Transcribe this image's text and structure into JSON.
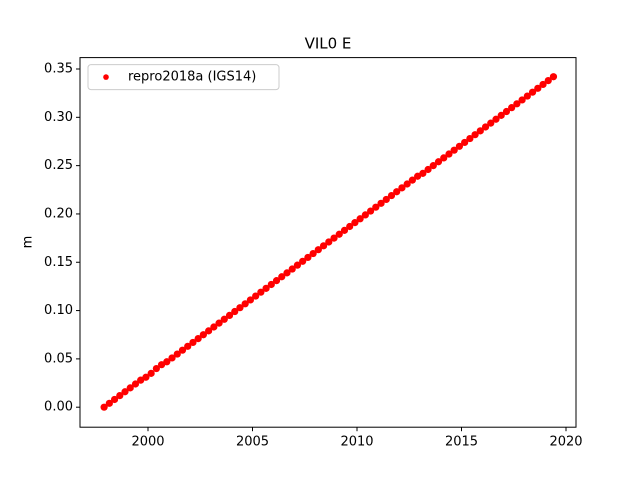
{
  "chart_data": {
    "type": "scatter",
    "title": "VIL0 E",
    "y_label": "m",
    "legend_loc": "upper left",
    "xlim": [
      1996.746,
      2020.478
    ],
    "ylim": [
      -0.0207,
      0.3618
    ],
    "xticks": [
      2000,
      2005,
      2010,
      2015,
      2020
    ],
    "yticks": [
      {
        "value": 0,
        "label": "0.00"
      },
      0.05,
      {
        "value": 0.1,
        "label": "0.10"
      },
      0.15,
      {
        "value": 0.2,
        "label": "0.20"
      },
      0.25,
      {
        "value": 0.3,
        "label": "0.30"
      },
      0.35
    ],
    "series": [
      {
        "name": "repro2018a (IGS14)",
        "color": "#ff0000",
        "x": [
          1997.9,
          1998.15,
          1998.4,
          1998.65,
          1998.9,
          1999.15,
          1999.4,
          1999.65,
          1999.9,
          2000.15,
          2000.4,
          2000.65,
          2000.9,
          2001.15,
          2001.4,
          2001.65,
          2001.9,
          2002.15,
          2002.4,
          2002.65,
          2002.9,
          2003.15,
          2003.4,
          2003.65,
          2003.9,
          2004.15,
          2004.4,
          2004.65,
          2004.9,
          2005.15,
          2005.4,
          2005.65,
          2005.9,
          2006.15,
          2006.4,
          2006.65,
          2006.9,
          2007.15,
          2007.4,
          2007.65,
          2007.9,
          2008.15,
          2008.4,
          2008.65,
          2008.9,
          2009.15,
          2009.4,
          2009.65,
          2009.9,
          2010.15,
          2010.4,
          2010.65,
          2010.9,
          2011.15,
          2011.4,
          2011.65,
          2011.9,
          2012.15,
          2012.4,
          2012.65,
          2012.9,
          2013.15,
          2013.4,
          2013.65,
          2013.9,
          2014.15,
          2014.4,
          2014.65,
          2014.9,
          2015.15,
          2015.4,
          2015.65,
          2015.9,
          2016.15,
          2016.4,
          2016.65,
          2016.9,
          2017.15,
          2017.4,
          2017.65,
          2017.9,
          2018.15,
          2018.4,
          2018.65,
          2018.9,
          2019.15,
          2019.4
        ],
        "values": [
          0.0,
          0.004,
          0.008,
          0.012,
          0.016,
          0.02,
          0.024,
          0.028,
          0.031,
          0.035,
          0.04,
          0.044,
          0.047,
          0.051,
          0.055,
          0.059,
          0.063,
          0.067,
          0.071,
          0.075,
          0.079,
          0.083,
          0.087,
          0.091,
          0.095,
          0.099,
          0.103,
          0.107,
          0.111,
          0.115,
          0.119,
          0.123,
          0.127,
          0.131,
          0.135,
          0.139,
          0.143,
          0.147,
          0.151,
          0.155,
          0.159,
          0.163,
          0.167,
          0.171,
          0.175,
          0.179,
          0.183,
          0.187,
          0.191,
          0.195,
          0.199,
          0.203,
          0.207,
          0.211,
          0.215,
          0.219,
          0.223,
          0.227,
          0.231,
          0.235,
          0.239,
          0.242,
          0.246,
          0.25,
          0.254,
          0.258,
          0.262,
          0.266,
          0.27,
          0.274,
          0.278,
          0.282,
          0.286,
          0.29,
          0.294,
          0.298,
          0.302,
          0.306,
          0.31,
          0.314,
          0.318,
          0.322,
          0.326,
          0.33,
          0.334,
          0.338,
          0.342
        ]
      }
    ]
  }
}
